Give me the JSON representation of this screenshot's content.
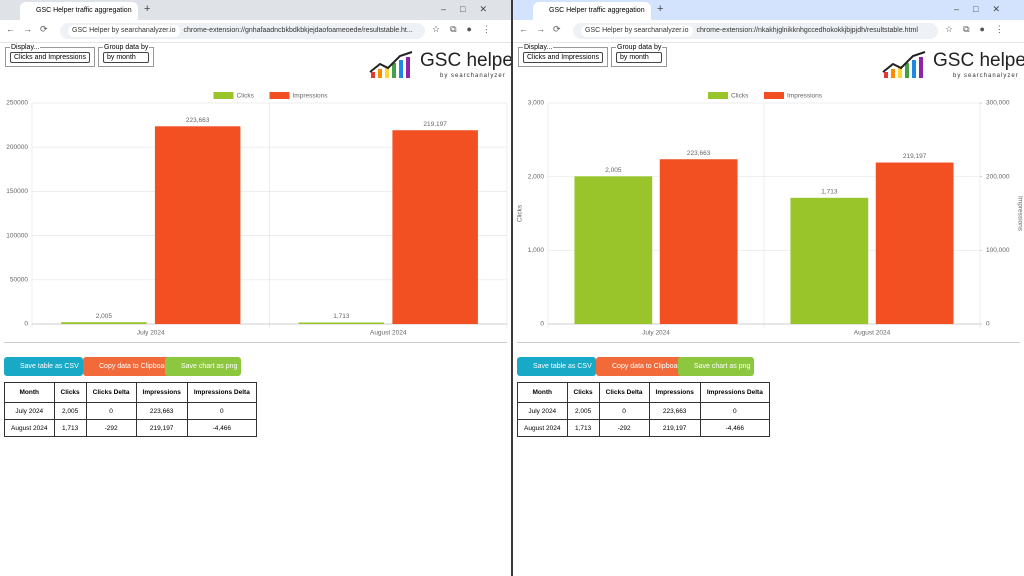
{
  "windows": [
    {
      "tab_title": "GSC Helper traffic aggregation",
      "site_chip": "GSC Helper by searchanalyzer.io",
      "url": "chrome-extension://gnhafaadncbkbdkbkjejdaofoameoede/resultstable.ht...",
      "display_label": "Display...",
      "display_value": "Clicks and Impressions",
      "group_label": "Group data by",
      "group_value": "by month",
      "logo": "GSC helper",
      "logo_sub": "by searchanalyzer",
      "chart_data": {
        "type": "bar",
        "categories": [
          "July 2024",
          "August 2024"
        ],
        "series": [
          {
            "name": "Clicks",
            "color": "#9ac52a",
            "values": [
              2005,
              1713
            ],
            "value_labels": [
              "2,005",
              "1,713"
            ]
          },
          {
            "name": "Impressions",
            "color": "#f24f23",
            "values": [
              223663,
              219197
            ],
            "value_labels": [
              "223,663",
              "219,197"
            ]
          }
        ],
        "ylim": [
          0,
          250000
        ],
        "yticks": [
          0,
          50000,
          100000,
          150000,
          200000,
          250000
        ],
        "grid": true,
        "legend": "top"
      },
      "buttons": [
        "Save table as CSV",
        "Copy data to Clipboard",
        "Save chart as png"
      ],
      "table": {
        "header": [
          "Month",
          "Clicks",
          "Clicks Delta",
          "Impressions",
          "Impressions Delta"
        ],
        "rows": [
          [
            "July 2024",
            "2,005",
            "0",
            "223,663",
            "0"
          ],
          [
            "August 2024",
            "1,713",
            "-292",
            "219,197",
            "-4,466"
          ]
        ]
      }
    },
    {
      "tab_title": "GSC Helper traffic aggregation",
      "site_chip": "GSC Helper by searchanalyzer.io",
      "url": "chrome-extension://nkakhjglnikknhgccedhokokkjbjpjdh/resultstable.html",
      "display_label": "Display...",
      "display_value": "Clicks and Impressions",
      "group_label": "Group data by",
      "group_value": "by month",
      "logo": "GSC helper",
      "logo_sub": "by searchanalyzer",
      "chart_data": {
        "type": "bar",
        "categories": [
          "July 2024",
          "August 2024"
        ],
        "series": [
          {
            "name": "Clicks",
            "color": "#9ac52a",
            "values": [
              2005,
              1713
            ],
            "value_labels": [
              "2,005",
              "1,713"
            ]
          },
          {
            "name": "Impressions",
            "color": "#f24f23",
            "axis": "y2",
            "values": [
              223663,
              219197
            ],
            "value_labels": [
              "223,663",
              "219,197"
            ]
          }
        ],
        "ylabel": "Clicks",
        "y2label": "Impressions",
        "ylim": [
          0,
          3000
        ],
        "yticks": [
          0,
          {
            "value": 1000,
            "label": "1,000"
          },
          {
            "value": 2000,
            "label": "2,000"
          },
          {
            "value": 3000,
            "label": "3,000"
          }
        ],
        "y2lim": [
          0,
          300000
        ],
        "y2ticks": [
          0,
          {
            "value": 100000,
            "label": "100,000"
          },
          {
            "value": 200000,
            "label": "200,000"
          },
          {
            "value": 300000,
            "label": "300,000"
          }
        ],
        "grid": true,
        "legend": "top"
      },
      "buttons": [
        "Save table as CSV",
        "Copy data to Clipboard",
        "Save chart as png"
      ],
      "table": {
        "header": [
          "Month",
          "Clicks",
          "Clicks Delta",
          "Impressions",
          "Impressions Delta"
        ],
        "rows": [
          [
            "July 2024",
            "2,005",
            "0",
            "223,663",
            "0"
          ],
          [
            "August 2024",
            "1,713",
            "-292",
            "219,197",
            "-4,466"
          ]
        ]
      }
    }
  ]
}
